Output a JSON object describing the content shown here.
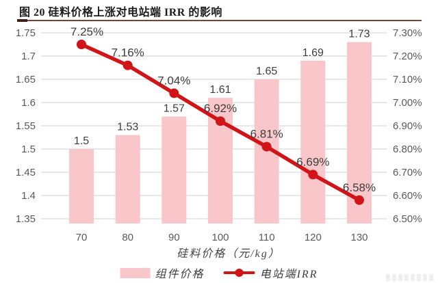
{
  "title": "图 20 硅料价格上涨对电站端 IRR 的影响",
  "colors": {
    "bar_fill": "#f9c6c9",
    "line_red": "#d01418",
    "grid": "#d9d9d9",
    "axis_text": "#595959",
    "data_label_text": "#3d3d3d",
    "title_text": "#1b1b1b",
    "rule": "#7d4038"
  },
  "chart_data": {
    "type": "combo",
    "categories": [
      "70",
      "80",
      "90",
      "100",
      "110",
      "120",
      "130"
    ],
    "xlabel": "硅料价格（元/kg）",
    "grid": true,
    "legend_position": "bottom",
    "series": [
      {
        "name": "组件价格",
        "type": "bar",
        "axis": "left",
        "values": [
          1.5,
          1.53,
          1.57,
          1.61,
          1.65,
          1.69,
          1.73
        ],
        "labels": [
          "1.5",
          "1.53",
          "1.57",
          "1.61",
          "1.65",
          "1.69",
          "1.73"
        ]
      },
      {
        "name": "电站端IRR",
        "type": "line",
        "axis": "right",
        "values": [
          7.25,
          7.16,
          7.04,
          6.92,
          6.81,
          6.69,
          6.58
        ],
        "labels": [
          "7.25%",
          "7.16%",
          "7.04%",
          "6.92%",
          "6.81%",
          "6.69%",
          "6.58%"
        ]
      }
    ],
    "left_axis": {
      "min": 1.35,
      "max": 1.75,
      "step": 0.05,
      "ticks": [
        "1.75",
        "1.7",
        "1.65",
        "1.6",
        "1.55",
        "1.5",
        "1.45",
        "1.4",
        "1.35"
      ]
    },
    "right_axis": {
      "min": 6.5,
      "max": 7.3,
      "step": 0.1,
      "ticks": [
        "7.30%",
        "7.20%",
        "7.10%",
        "7.00%",
        "6.90%",
        "6.80%",
        "6.70%",
        "6.60%",
        "6.50%"
      ]
    }
  }
}
